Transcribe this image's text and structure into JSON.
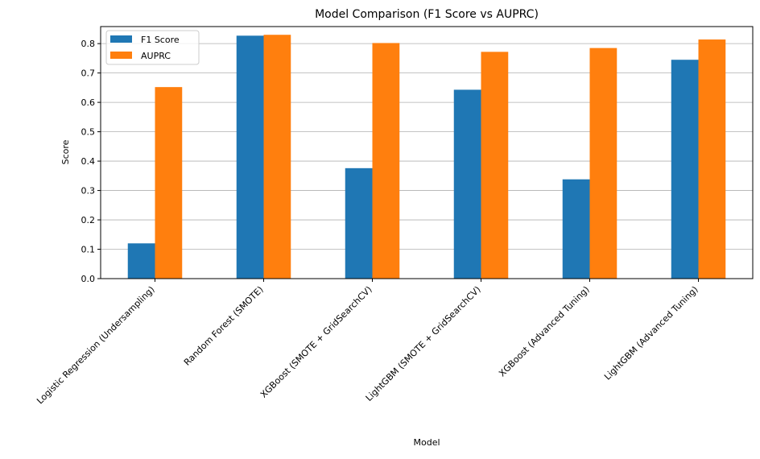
{
  "chart_data": {
    "type": "bar",
    "title": "Model Comparison (F1 Score vs AUPRC)",
    "xlabel": "Model",
    "ylabel": "Score",
    "categories": [
      "Logistic Regression (Undersampling)",
      "Random Forest (SMOTE)",
      "XGBoost (SMOTE + GridSearchCV)",
      "LightGBM (SMOTE + GridSearchCV)",
      "XGBoost (Advanced Tuning)",
      "LightGBM (Advanced Tuning)"
    ],
    "series": [
      {
        "name": "F1 Score",
        "color": "#1f77b4",
        "values": [
          0.12,
          0.827,
          0.376,
          0.643,
          0.338,
          0.745
        ]
      },
      {
        "name": "AUPRC",
        "color": "#ff7f0e",
        "values": [
          0.652,
          0.83,
          0.802,
          0.772,
          0.785,
          0.814
        ]
      }
    ],
    "ylim": [
      0,
      0.858
    ],
    "yticks": [
      "0.0",
      "0.1",
      "0.2",
      "0.3",
      "0.4",
      "0.5",
      "0.6",
      "0.7",
      "0.8"
    ],
    "grid": "horizontal",
    "legend_position": "top-left"
  }
}
